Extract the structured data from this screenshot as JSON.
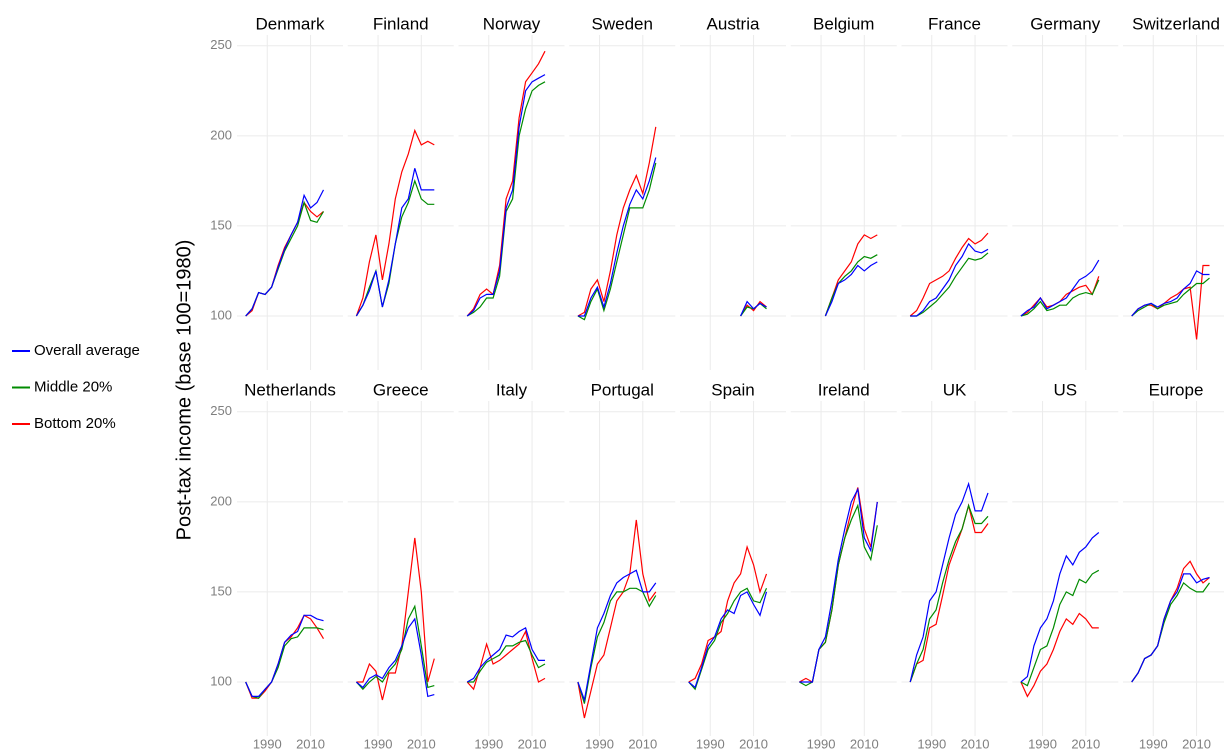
{
  "chart_data": {
    "type": "line",
    "y_label": "Post-tax income (base 100=1980)",
    "x": [
      1980,
      1983,
      1986,
      1989,
      1992,
      1995,
      1998,
      2001,
      2004,
      2007,
      2010,
      2013,
      2016
    ],
    "xlim": [
      1976,
      2025
    ],
    "xticks": [
      1990,
      2010
    ],
    "ylim": [
      70,
      256
    ],
    "yticks": [
      100,
      150,
      200,
      250
    ],
    "grid": true,
    "legend": "left",
    "series": [
      {
        "name": "Overall average",
        "color": "#0000ff"
      },
      {
        "name": "Middle 20%",
        "color": "#008b00"
      },
      {
        "name": "Bottom 20%",
        "color": "#ff0000"
      }
    ],
    "facets": [
      {
        "title": "Denmark",
        "values": [
          [
            100,
            104,
            113,
            112,
            116,
            127,
            137,
            145,
            152,
            167,
            160,
            163,
            170
          ],
          [
            100,
            104,
            113,
            112,
            116,
            126,
            136,
            143,
            150,
            163,
            153,
            152,
            158
          ],
          [
            100,
            103,
            113,
            112,
            116,
            128,
            138,
            145,
            152,
            163,
            158,
            155,
            158
          ]
        ]
      },
      {
        "title": "Finland",
        "values": [
          [
            100,
            106,
            114,
            125,
            105,
            120,
            140,
            160,
            165,
            182,
            170,
            170,
            170
          ],
          [
            100,
            106,
            116,
            125,
            105,
            118,
            140,
            155,
            163,
            175,
            165,
            162,
            162
          ],
          [
            100,
            110,
            130,
            145,
            120,
            140,
            165,
            180,
            190,
            203,
            195,
            197,
            195
          ]
        ]
      },
      {
        "title": "Norway",
        "values": [
          [
            100,
            103,
            110,
            112,
            112,
            125,
            160,
            170,
            205,
            225,
            230,
            232,
            234
          ],
          [
            100,
            102,
            105,
            110,
            110,
            122,
            158,
            165,
            200,
            215,
            225,
            228,
            230
          ],
          [
            100,
            104,
            112,
            115,
            112,
            128,
            165,
            175,
            210,
            230,
            235,
            240,
            247
          ]
        ]
      },
      {
        "title": "Sweden",
        "values": [
          [
            100,
            100,
            110,
            116,
            105,
            118,
            135,
            150,
            162,
            170,
            165,
            175,
            188
          ],
          [
            100,
            98,
            108,
            115,
            103,
            115,
            130,
            145,
            160,
            160,
            160,
            170,
            185
          ],
          [
            100,
            102,
            115,
            120,
            108,
            125,
            145,
            160,
            170,
            178,
            168,
            185,
            205
          ]
        ]
      },
      {
        "title": "Austria",
        "values": [
          [
            null,
            null,
            null,
            null,
            null,
            null,
            null,
            null,
            100,
            108,
            104,
            107,
            105
          ],
          [
            null,
            null,
            null,
            null,
            null,
            null,
            null,
            null,
            100,
            105,
            104,
            107,
            104
          ],
          [
            null,
            null,
            null,
            null,
            null,
            null,
            null,
            null,
            100,
            106,
            103,
            108,
            105
          ]
        ]
      },
      {
        "title": "Belgium",
        "values": [
          [
            null,
            null,
            null,
            null,
            100,
            108,
            118,
            120,
            123,
            128,
            125,
            128,
            130
          ],
          [
            null,
            null,
            null,
            null,
            100,
            110,
            118,
            122,
            125,
            130,
            133,
            132,
            134
          ],
          [
            null,
            null,
            null,
            null,
            100,
            110,
            120,
            125,
            130,
            140,
            145,
            143,
            145
          ]
        ]
      },
      {
        "title": "France",
        "values": [
          [
            100,
            100,
            103,
            108,
            110,
            115,
            120,
            128,
            133,
            140,
            136,
            135,
            137
          ],
          [
            100,
            100,
            102,
            105,
            108,
            112,
            116,
            122,
            127,
            132,
            131,
            132,
            135
          ],
          [
            100,
            103,
            110,
            118,
            120,
            122,
            125,
            132,
            138,
            143,
            140,
            142,
            146
          ]
        ]
      },
      {
        "title": "Germany",
        "values": [
          [
            100,
            103,
            105,
            110,
            104,
            106,
            108,
            110,
            115,
            120,
            122,
            125,
            131
          ],
          [
            100,
            101,
            104,
            108,
            103,
            104,
            106,
            106,
            110,
            112,
            113,
            112,
            120
          ],
          [
            100,
            102,
            106,
            110,
            105,
            106,
            108,
            112,
            114,
            116,
            117,
            112,
            122
          ]
        ]
      },
      {
        "title": "Switzerland",
        "values": [
          [
            100,
            104,
            106,
            107,
            105,
            107,
            108,
            110,
            115,
            118,
            125,
            123,
            123
          ],
          [
            100,
            103,
            105,
            107,
            104,
            106,
            107,
            108,
            112,
            115,
            118,
            118,
            121
          ],
          [
            100,
            104,
            106,
            106,
            104,
            107,
            110,
            112,
            115,
            116,
            87,
            128,
            128
          ]
        ]
      },
      {
        "title": "Netherlands",
        "values": [
          [
            100,
            92,
            92,
            96,
            100,
            110,
            122,
            126,
            128,
            137,
            137,
            135,
            134
          ],
          [
            100,
            92,
            91,
            96,
            100,
            108,
            120,
            124,
            125,
            130,
            130,
            130,
            129
          ],
          [
            100,
            91,
            91,
            95,
            100,
            110,
            122,
            125,
            130,
            137,
            135,
            130,
            124
          ]
        ]
      },
      {
        "title": "Greece",
        "values": [
          [
            100,
            97,
            102,
            104,
            102,
            108,
            112,
            120,
            130,
            135,
            115,
            92,
            93
          ],
          [
            100,
            96,
            100,
            103,
            100,
            106,
            110,
            118,
            135,
            142,
            120,
            97,
            98
          ],
          [
            100,
            100,
            110,
            106,
            90,
            105,
            105,
            120,
            150,
            180,
            150,
            100,
            113
          ]
        ]
      },
      {
        "title": "Italy",
        "values": [
          [
            100,
            102,
            108,
            112,
            115,
            118,
            126,
            125,
            128,
            130,
            118,
            112,
            112
          ],
          [
            100,
            100,
            106,
            111,
            113,
            115,
            120,
            120,
            122,
            123,
            115,
            108,
            110
          ],
          [
            100,
            96,
            108,
            121,
            110,
            112,
            115,
            118,
            121,
            128,
            113,
            100,
            102
          ]
        ]
      },
      {
        "title": "Portugal",
        "values": [
          [
            100,
            90,
            110,
            130,
            138,
            148,
            155,
            158,
            160,
            162,
            150,
            150,
            155
          ],
          [
            100,
            88,
            108,
            125,
            133,
            145,
            150,
            150,
            152,
            152,
            150,
            142,
            148
          ],
          [
            100,
            80,
            95,
            110,
            115,
            130,
            145,
            150,
            160,
            190,
            160,
            145,
            150
          ]
        ]
      },
      {
        "title": "Spain",
        "values": [
          [
            100,
            97,
            108,
            120,
            125,
            135,
            140,
            138,
            148,
            150,
            143,
            137,
            150
          ],
          [
            100,
            96,
            107,
            118,
            123,
            133,
            138,
            145,
            150,
            152,
            145,
            144,
            152
          ],
          [
            100,
            102,
            110,
            123,
            125,
            128,
            145,
            155,
            160,
            175,
            165,
            150,
            160
          ]
        ]
      },
      {
        "title": "Ireland",
        "values": [
          [
            100,
            100,
            100,
            118,
            125,
            145,
            168,
            185,
            200,
            207,
            180,
            173,
            200
          ],
          [
            100,
            98,
            100,
            118,
            122,
            140,
            165,
            180,
            190,
            198,
            175,
            168,
            187
          ],
          [
            100,
            102,
            100,
            118,
            122,
            140,
            165,
            180,
            195,
            208,
            185,
            175,
            200
          ]
        ]
      },
      {
        "title": "UK",
        "values": [
          [
            100,
            115,
            125,
            145,
            150,
            165,
            180,
            193,
            200,
            210,
            195,
            195,
            205
          ],
          [
            100,
            110,
            118,
            135,
            140,
            155,
            168,
            178,
            185,
            198,
            188,
            188,
            192
          ],
          [
            100,
            110,
            112,
            130,
            132,
            148,
            165,
            175,
            185,
            198,
            183,
            183,
            188
          ]
        ]
      },
      {
        "title": "US",
        "values": [
          [
            100,
            103,
            120,
            130,
            135,
            145,
            160,
            170,
            165,
            172,
            175,
            180,
            183
          ],
          [
            100,
            98,
            108,
            118,
            120,
            130,
            143,
            150,
            148,
            157,
            155,
            160,
            162
          ],
          [
            100,
            92,
            98,
            106,
            110,
            118,
            128,
            135,
            132,
            138,
            135,
            130,
            130
          ]
        ]
      },
      {
        "title": "Europe",
        "values": [
          [
            100,
            105,
            113,
            115,
            120,
            135,
            145,
            150,
            160,
            160,
            155,
            157,
            158
          ],
          [
            100,
            105,
            113,
            115,
            120,
            133,
            143,
            148,
            155,
            152,
            150,
            150,
            155
          ],
          [
            100,
            105,
            113,
            115,
            120,
            135,
            145,
            152,
            163,
            167,
            160,
            155,
            158
          ]
        ]
      }
    ]
  }
}
